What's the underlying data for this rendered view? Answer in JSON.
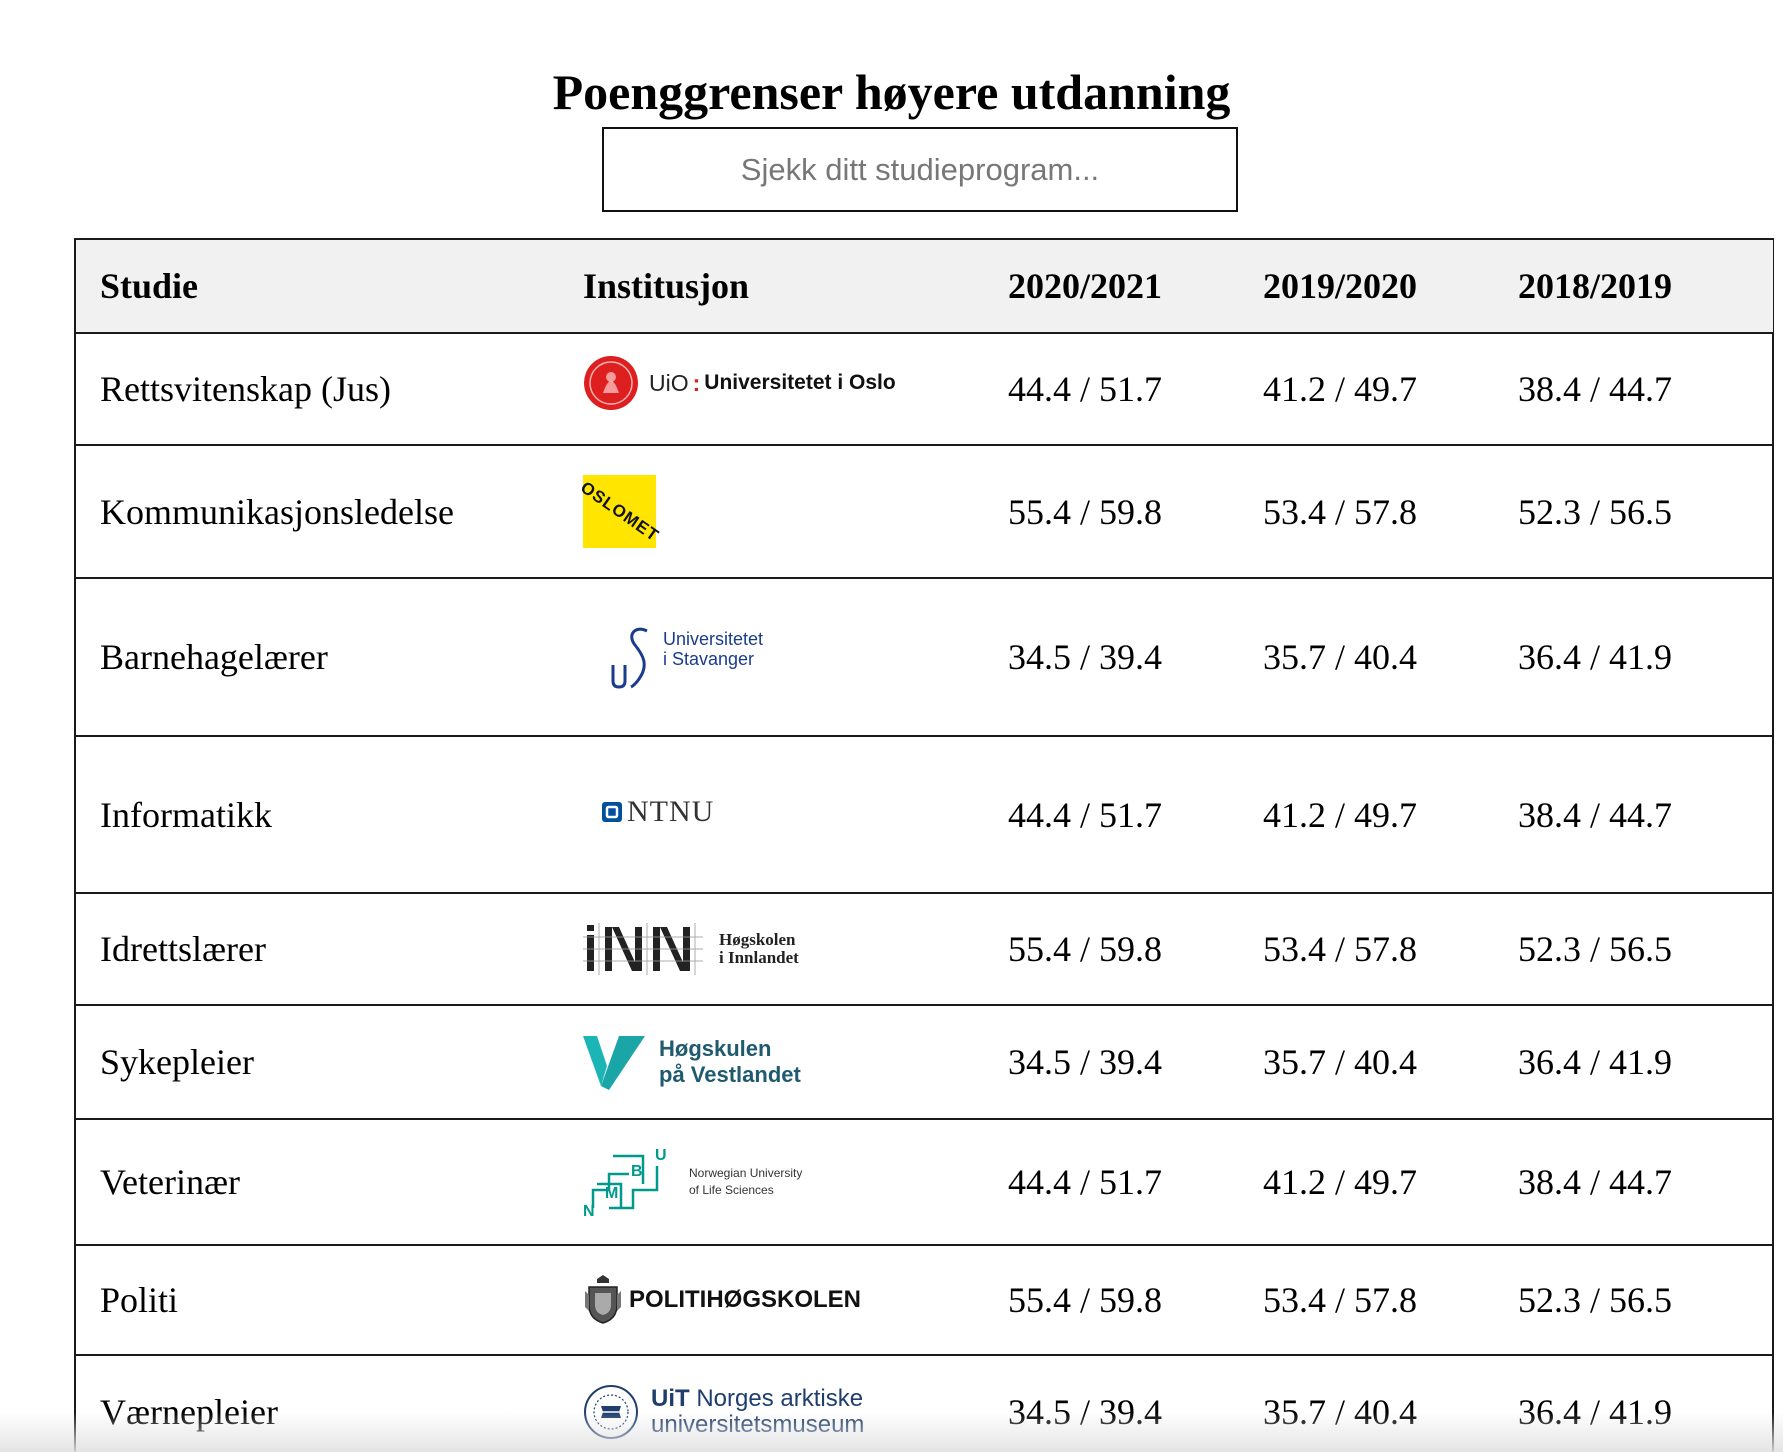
{
  "page": {
    "title": "Poenggrenser høyere utdanning"
  },
  "search": {
    "placeholder": "Sjekk ditt studieprogram..."
  },
  "table": {
    "headers": {
      "study": "Studie",
      "institution": "Institusjon",
      "year1": "2020/2021",
      "year2": "2019/2020",
      "year3": "2018/2019"
    },
    "rows": [
      {
        "study": "Rettsvitenskap (Jus)",
        "logo": {
          "icon": "uio-seal-icon",
          "text1": "UiO",
          "text2": "Universitetet i Oslo",
          "color": "#dd0000"
        },
        "y1": "44.4 / 51.7",
        "y2": "41.2 / 49.7",
        "y3": "38.4 / 44.7"
      },
      {
        "study": "Kommunikasjonsledelse",
        "logo": {
          "icon": "oslomet-logo",
          "text1": "OSLOMET",
          "color": "#ffe500"
        },
        "y1": "55.4 / 59.8",
        "y2": "53.4 / 57.8",
        "y3": "52.3 / 56.5"
      },
      {
        "study": "Barnehagelærer",
        "logo": {
          "icon": "uis-logo",
          "text1": "Universitetet",
          "text2": "i Stavanger",
          "color": "#1a3c8c"
        },
        "y1": "34.5 / 39.4",
        "y2": "35.7 / 40.4",
        "y3": "36.4 / 41.9"
      },
      {
        "study": "Informatikk",
        "logo": {
          "icon": "ntnu-square-icon",
          "text1": "NTNU",
          "color": "#00509e"
        },
        "y1": "44.4 / 51.7",
        "y2": "41.2 / 49.7",
        "y3": "38.4 / 44.7"
      },
      {
        "study": "Idrettslærer",
        "logo": {
          "icon": "inn-logo",
          "text1": "Høgskolen",
          "text2": "i Innlandet",
          "color": "#222222"
        },
        "y1": "55.4 / 59.8",
        "y2": "53.4 / 57.8",
        "y3": "52.3 / 56.5"
      },
      {
        "study": "Sykepleier",
        "logo": {
          "icon": "hvl-v-icon",
          "text1": "Høgskulen",
          "text2": "på Vestlandet",
          "color": "#1aa6a6"
        },
        "y1": "34.5 / 39.4",
        "y2": "35.7 / 40.4",
        "y3": "36.4 / 41.9"
      },
      {
        "study": "Veterinær",
        "logo": {
          "icon": "nmbu-logo",
          "text1": "Norwegian University",
          "text2": "of Life Sciences",
          "color": "#009a8c"
        },
        "y1": "44.4 / 51.7",
        "y2": "41.2 / 49.7",
        "y3": "38.4 / 44.7"
      },
      {
        "study": "Politi",
        "logo": {
          "icon": "police-crest-icon",
          "text1": "POLITIHØGSKOLEN",
          "color": "#111111"
        },
        "y1": "55.4 / 59.8",
        "y2": "53.4 / 57.8",
        "y3": "52.3 / 56.5"
      },
      {
        "study": "Værnepleier",
        "logo": {
          "icon": "uit-seal-icon",
          "text1": "UiT",
          "text2": "Norges arktiske",
          "text3": "universitetsmuseum",
          "color": "#1f3e6e"
        },
        "y1": "34.5 / 39.4",
        "y2": "35.7 / 40.4",
        "y3": "36.4 / 41.9"
      }
    ]
  }
}
